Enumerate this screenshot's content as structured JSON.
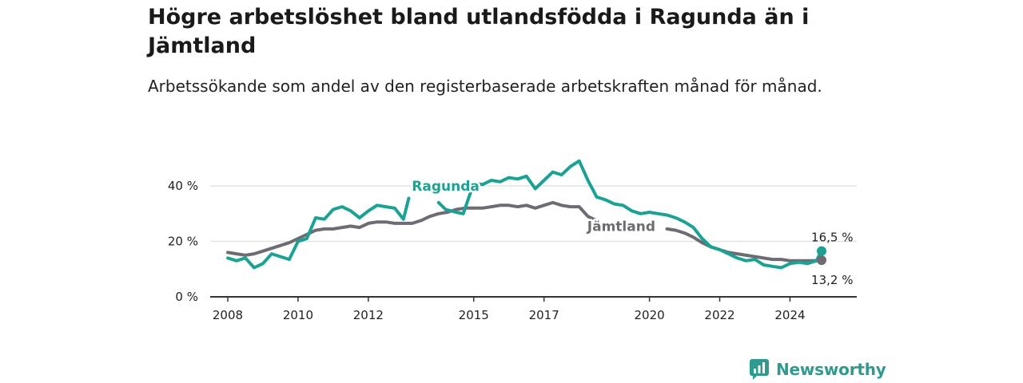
{
  "title": "Högre arbetslöshet bland utlandsfödda i Ragunda än i Jämtland",
  "subtitle": "Arbetssökande som andel av den registerbaserade arbetskraften månad för månad.",
  "brand": "Newsworthy",
  "colors": {
    "ragunda": "#1aa394",
    "jamtland": "#6e6b72",
    "grid": "#e2e2e2",
    "axis": "#333333",
    "brand": "#2e9a90"
  },
  "chart_data": {
    "type": "line",
    "ylim": [
      0,
      40
    ],
    "yticks": [
      0,
      20,
      40
    ],
    "ytick_labels": [
      "0 %",
      "20 %",
      "40 %"
    ],
    "xlim": [
      2007.5,
      2025.9
    ],
    "xticks": [
      2008,
      2010,
      2012,
      2015,
      2017,
      2020,
      2022,
      2024
    ],
    "grid": true,
    "series": [
      {
        "name": "Ragunda",
        "color": "#1aa394",
        "label_x": 2014.2,
        "label_y": 38.3,
        "end_label": "16,5 %",
        "segments": [
          [
            [
              2008.0,
              14.0
            ],
            [
              2008.25,
              13.0
            ],
            [
              2008.5,
              14.0
            ],
            [
              2008.75,
              10.5
            ],
            [
              2009.0,
              12.0
            ],
            [
              2009.25,
              15.5
            ],
            [
              2009.5,
              14.5
            ],
            [
              2009.75,
              13.5
            ],
            [
              2010.0,
              20.0
            ],
            [
              2010.25,
              21.0
            ],
            [
              2010.5,
              28.5
            ],
            [
              2010.75,
              28.0
            ],
            [
              2011.0,
              31.5
            ],
            [
              2011.25,
              32.5
            ],
            [
              2011.5,
              31.0
            ],
            [
              2011.75,
              28.5
            ],
            [
              2012.0,
              31.0
            ],
            [
              2012.25,
              33.0
            ],
            [
              2012.5,
              32.5
            ],
            [
              2012.75,
              32.0
            ],
            [
              2013.0,
              28.0
            ],
            [
              2013.15,
              35.5
            ]
          ],
          [
            [
              2014.0,
              34.0
            ],
            [
              2014.2,
              31.5
            ],
            [
              2014.5,
              30.5
            ],
            [
              2014.7,
              30.0
            ],
            [
              2015.0,
              41.0
            ],
            [
              2015.25,
              40.5
            ],
            [
              2015.5,
              42.0
            ],
            [
              2015.75,
              41.5
            ],
            [
              2016.0,
              43.0
            ],
            [
              2016.25,
              42.5
            ],
            [
              2016.5,
              43.5
            ],
            [
              2016.75,
              39.0
            ],
            [
              2017.0,
              42.0
            ],
            [
              2017.25,
              45.0
            ],
            [
              2017.5,
              44.0
            ],
            [
              2017.75,
              47.0
            ],
            [
              2018.0,
              49.0
            ],
            [
              2018.25,
              42.0
            ],
            [
              2018.5,
              36.0
            ],
            [
              2018.75,
              35.0
            ],
            [
              2019.0,
              33.5
            ],
            [
              2019.25,
              33.0
            ],
            [
              2019.5,
              31.0
            ],
            [
              2019.75,
              30.0
            ],
            [
              2020.0,
              30.5
            ],
            [
              2020.25,
              30.0
            ],
            [
              2020.5,
              29.5
            ],
            [
              2020.75,
              28.5
            ],
            [
              2021.0,
              27.0
            ],
            [
              2021.25,
              25.0
            ],
            [
              2021.5,
              21.0
            ],
            [
              2021.75,
              18.0
            ],
            [
              2022.0,
              17.0
            ],
            [
              2022.25,
              15.5
            ],
            [
              2022.5,
              14.0
            ],
            [
              2022.75,
              13.0
            ],
            [
              2023.0,
              13.5
            ],
            [
              2023.25,
              11.5
            ],
            [
              2023.5,
              11.0
            ],
            [
              2023.75,
              10.5
            ],
            [
              2024.0,
              12.0
            ],
            [
              2024.25,
              12.5
            ],
            [
              2024.5,
              12.0
            ],
            [
              2024.75,
              13.0
            ],
            [
              2024.9,
              16.5
            ]
          ]
        ]
      },
      {
        "name": "Jämtland",
        "color": "#6e6b72",
        "label_x": 2019.2,
        "label_y": 23.8,
        "end_label": "13,2 %",
        "segments": [
          [
            [
              2008.0,
              16.0
            ],
            [
              2008.25,
              15.5
            ],
            [
              2008.5,
              15.0
            ],
            [
              2008.75,
              15.5
            ],
            [
              2009.0,
              16.5
            ],
            [
              2009.25,
              17.5
            ],
            [
              2009.5,
              18.5
            ],
            [
              2009.75,
              19.5
            ],
            [
              2010.0,
              21.0
            ],
            [
              2010.25,
              22.5
            ],
            [
              2010.5,
              24.0
            ],
            [
              2010.75,
              24.5
            ],
            [
              2011.0,
              24.5
            ],
            [
              2011.25,
              25.0
            ],
            [
              2011.5,
              25.5
            ],
            [
              2011.75,
              25.0
            ],
            [
              2012.0,
              26.5
            ],
            [
              2012.25,
              27.0
            ],
            [
              2012.5,
              27.0
            ],
            [
              2012.75,
              26.5
            ],
            [
              2013.0,
              26.5
            ],
            [
              2013.25,
              26.5
            ],
            [
              2013.5,
              27.5
            ],
            [
              2013.75,
              29.0
            ],
            [
              2014.0,
              30.0
            ],
            [
              2014.25,
              30.5
            ],
            [
              2014.5,
              31.5
            ],
            [
              2014.75,
              32.0
            ],
            [
              2015.0,
              32.0
            ],
            [
              2015.25,
              32.0
            ],
            [
              2015.5,
              32.5
            ],
            [
              2015.75,
              33.0
            ],
            [
              2016.0,
              33.0
            ],
            [
              2016.25,
              32.5
            ],
            [
              2016.5,
              33.0
            ],
            [
              2016.75,
              32.0
            ],
            [
              2017.0,
              33.0
            ],
            [
              2017.25,
              34.0
            ],
            [
              2017.5,
              33.0
            ],
            [
              2017.75,
              32.5
            ],
            [
              2018.0,
              32.5
            ],
            [
              2018.25,
              29.0
            ],
            [
              2018.5,
              27.5
            ]
          ],
          [
            [
              2020.5,
              24.5
            ],
            [
              2020.75,
              24.0
            ],
            [
              2021.0,
              23.0
            ],
            [
              2021.25,
              21.5
            ],
            [
              2021.5,
              19.5
            ],
            [
              2021.75,
              18.0
            ],
            [
              2022.0,
              17.0
            ],
            [
              2022.25,
              16.0
            ],
            [
              2022.5,
              15.5
            ],
            [
              2022.75,
              15.0
            ],
            [
              2023.0,
              14.5
            ],
            [
              2023.25,
              14.0
            ],
            [
              2023.5,
              13.5
            ],
            [
              2023.75,
              13.5
            ],
            [
              2024.0,
              13.0
            ],
            [
              2024.25,
              13.0
            ],
            [
              2024.5,
              13.0
            ],
            [
              2024.75,
              13.0
            ],
            [
              2024.9,
              13.2
            ]
          ]
        ]
      }
    ]
  }
}
